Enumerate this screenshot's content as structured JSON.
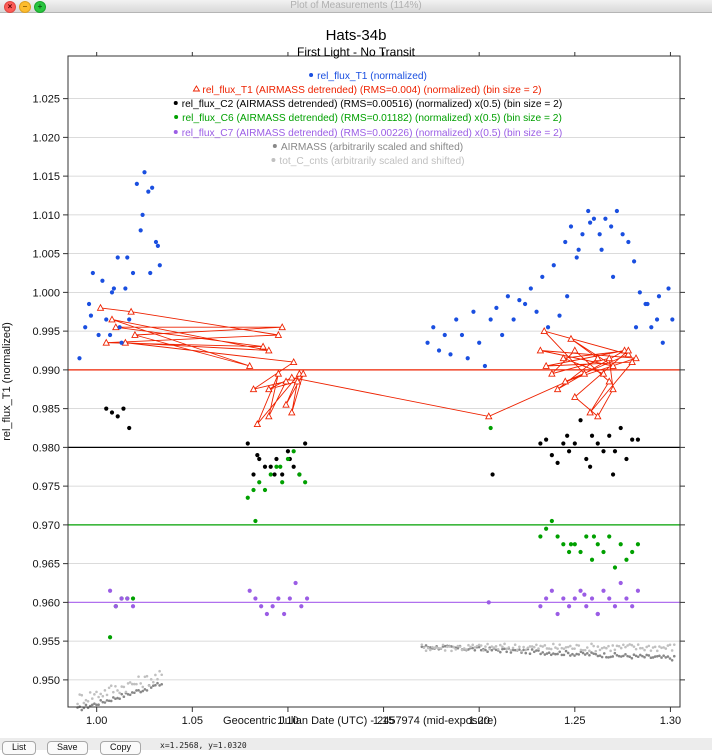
{
  "window": {
    "title": "Plot of Measurements (114%)"
  },
  "buttons": {
    "list": "List",
    "save": "Save",
    "copy": "Copy"
  },
  "coords": "x=1.2568, y=1.0320",
  "chart_data": {
    "type": "scatter",
    "title": "Hats-34b",
    "subtitle": "First Light - No Transit",
    "xlabel": "Geocentric Julian Date (UTC) - 2457974 (mid-exposure)",
    "ylabel": "rel_flux_T1 (normalized)",
    "xlim": [
      0.985,
      1.305
    ],
    "ylim": [
      0.9465,
      1.0305
    ],
    "xticks": [
      1.0,
      1.05,
      1.1,
      1.15,
      1.2,
      1.25,
      1.3
    ],
    "xtick_labels": [
      "1.00",
      "1.05",
      "1.10",
      "1.15",
      "1.20",
      "1.25",
      "1.30"
    ],
    "yticks": [
      0.95,
      0.955,
      0.96,
      0.965,
      0.97,
      0.975,
      0.98,
      0.985,
      0.99,
      0.995,
      1.0,
      1.005,
      1.01,
      1.015,
      1.02,
      1.025
    ],
    "ytick_labels": [
      "0.950",
      "0.955",
      "0.960",
      "0.965",
      "0.970",
      "0.975",
      "0.980",
      "0.985",
      "0.990",
      "0.995",
      "1.000",
      "1.005",
      "1.010",
      "1.015",
      "1.020",
      "1.025"
    ],
    "reference_lines": [
      {
        "y": 0.99,
        "color": "#ee2200"
      },
      {
        "y": 0.98,
        "color": "#000000"
      },
      {
        "y": 0.97,
        "color": "#00a000"
      },
      {
        "y": 0.96,
        "color": "#b070ee"
      }
    ],
    "legend": [
      {
        "label": "rel_flux_T1 (normalized)",
        "color": "#1a4fe0",
        "marker": "dot"
      },
      {
        "label": "rel_flux_T1 (AIRMASS detrended) (RMS=0.004) (normalized) (bin size = 2)",
        "color": "#ee2200",
        "marker": "triangle"
      },
      {
        "label": "rel_flux_C2 (AIRMASS detrended) (RMS=0.00516) (normalized) x(0.5) (bin size = 2)",
        "color": "#000000",
        "marker": "dot"
      },
      {
        "label": "rel_flux_C6 (AIRMASS detrended) (RMS=0.01182) (normalized) x(0.5) (bin size = 2)",
        "color": "#00a000",
        "marker": "dot"
      },
      {
        "label": "rel_flux_C7 (AIRMASS detrended) (RMS=0.00226) (normalized) x(0.5) (bin size = 2)",
        "color": "#9b5de5",
        "marker": "dot"
      },
      {
        "label": "AIRMASS (arbitrarily scaled and shifted)",
        "color": "#888888",
        "marker": "dot"
      },
      {
        "label": "tot_C_cnts (arbitrarily scaled and shifted)",
        "color": "#c0c0c0",
        "marker": "dot"
      }
    ],
    "series": [
      {
        "name": "rel_flux_T1 (normalized)",
        "color": "#1a4fe0",
        "style": "points",
        "x": [
          0.991,
          0.994,
          0.996,
          0.998,
          1.001,
          1.003,
          1.005,
          1.007,
          1.009,
          1.011,
          1.013,
          1.015,
          1.017,
          1.019,
          1.021,
          1.023,
          1.025,
          1.027,
          1.029,
          1.031,
          1.033,
          0.997,
          1.008,
          1.012,
          1.016,
          1.024,
          1.028,
          1.032,
          1.173,
          1.176,
          1.179,
          1.182,
          1.185,
          1.188,
          1.191,
          1.194,
          1.197,
          1.2,
          1.203,
          1.206,
          1.209,
          1.212,
          1.215,
          1.218,
          1.221,
          1.224,
          1.227,
          1.23,
          1.233,
          1.236,
          1.239,
          1.242,
          1.245,
          1.248,
          1.251,
          1.254,
          1.257,
          1.26,
          1.263,
          1.266,
          1.269,
          1.272,
          1.275,
          1.278,
          1.281,
          1.284,
          1.287,
          1.29,
          1.293,
          1.296,
          1.299,
          1.301,
          1.246,
          1.252,
          1.258,
          1.264,
          1.27,
          1.282,
          1.288,
          1.294
        ],
        "y": [
          0.9915,
          0.9955,
          0.9985,
          1.0025,
          0.9945,
          1.0015,
          0.9965,
          0.9945,
          1.0005,
          1.0045,
          0.9935,
          1.0005,
          0.9965,
          1.0025,
          1.014,
          1.008,
          1.0155,
          1.013,
          1.0135,
          1.0065,
          1.0035,
          0.997,
          1.0,
          0.9955,
          1.0045,
          1.01,
          1.0025,
          1.006,
          0.9935,
          0.9955,
          0.9925,
          0.9945,
          0.992,
          0.9965,
          0.9945,
          0.9915,
          0.9975,
          0.9935,
          0.9905,
          0.9965,
          0.998,
          0.9945,
          0.9995,
          0.9965,
          0.999,
          0.9985,
          1.0005,
          0.9975,
          1.002,
          0.9955,
          1.0035,
          0.997,
          1.0065,
          1.0085,
          1.0045,
          1.0075,
          1.0105,
          1.0095,
          1.0075,
          1.0095,
          1.0085,
          1.0105,
          1.0075,
          1.0065,
          1.004,
          1.0,
          0.9985,
          0.9955,
          0.9965,
          0.9935,
          1.0005,
          0.9965,
          0.9995,
          1.0055,
          1.009,
          1.0055,
          1.002,
          0.9955,
          0.9985,
          0.9995
        ]
      },
      {
        "name": "rel_flux_T1 (AIRMASS detrended)",
        "color": "#ee2200",
        "style": "line-triangles",
        "x": [
          1.002,
          1.018,
          1.095,
          1.005,
          1.087,
          1.01,
          1.097,
          1.02,
          1.08,
          1.008,
          1.09,
          1.015,
          1.103,
          1.082,
          1.099,
          1.09,
          1.095,
          1.084,
          1.106,
          1.099,
          1.108,
          1.102,
          1.105,
          1.09,
          1.102,
          1.205,
          1.255,
          1.234,
          1.278,
          1.245,
          1.282,
          1.232,
          1.27,
          1.248,
          1.262,
          1.241,
          1.276,
          1.235,
          1.28,
          1.258,
          1.268,
          1.25,
          1.238,
          1.268,
          1.27,
          1.262,
          1.25,
          1.278,
          1.244,
          1.265
        ],
        "y": [
          0.998,
          0.9975,
          0.9945,
          0.9935,
          0.993,
          0.9955,
          0.9955,
          0.9945,
          0.9905,
          0.9965,
          0.9925,
          0.9935,
          0.991,
          0.9875,
          0.9885,
          0.984,
          0.9895,
          0.983,
          0.9895,
          0.9855,
          0.9895,
          0.9845,
          0.9885,
          0.9875,
          0.989,
          0.984,
          0.9895,
          0.995,
          0.992,
          0.9885,
          0.9915,
          0.9925,
          0.9905,
          0.994,
          0.9915,
          0.9875,
          0.9925,
          0.9905,
          0.991,
          0.9845,
          0.9885,
          0.9925,
          0.9895,
          0.9915,
          0.9875,
          0.984,
          0.9865,
          0.9925,
          0.9915,
          0.9895
        ]
      },
      {
        "name": "rel_flux_C2 (AIRMASS detrended)",
        "color": "#000000",
        "style": "points",
        "x": [
          1.005,
          1.008,
          1.011,
          1.014,
          1.017,
          1.079,
          1.082,
          1.085,
          1.088,
          1.091,
          1.094,
          1.097,
          1.1,
          1.103,
          1.106,
          1.109,
          1.084,
          1.093,
          1.101,
          1.207,
          1.232,
          1.235,
          1.238,
          1.241,
          1.244,
          1.247,
          1.25,
          1.253,
          1.256,
          1.259,
          1.262,
          1.265,
          1.268,
          1.271,
          1.274,
          1.277,
          1.28,
          1.283,
          1.246,
          1.258,
          1.27
        ],
        "y": [
          0.985,
          0.9845,
          0.984,
          0.985,
          0.9825,
          0.9805,
          0.9765,
          0.9785,
          0.9775,
          0.9775,
          0.9785,
          0.9765,
          0.9795,
          0.9775,
          0.9765,
          0.9805,
          0.979,
          0.9765,
          0.9785,
          0.9765,
          0.9805,
          0.981,
          0.979,
          0.978,
          0.9805,
          0.9795,
          0.9805,
          0.9835,
          0.9785,
          0.9815,
          0.9805,
          0.9795,
          0.9815,
          0.9795,
          0.9825,
          0.9785,
          0.981,
          0.981,
          0.9815,
          0.9775,
          0.9765
        ]
      },
      {
        "name": "rel_flux_C6 (AIRMASS detrended)",
        "color": "#00a000",
        "style": "points",
        "x": [
          1.007,
          1.01,
          1.013,
          1.016,
          1.019,
          1.079,
          1.082,
          1.085,
          1.088,
          1.091,
          1.094,
          1.097,
          1.1,
          1.103,
          1.106,
          1.109,
          1.083,
          1.096,
          1.206,
          1.232,
          1.235,
          1.238,
          1.241,
          1.244,
          1.247,
          1.25,
          1.253,
          1.256,
          1.259,
          1.262,
          1.265,
          1.268,
          1.271,
          1.274,
          1.277,
          1.28,
          1.283,
          1.248,
          1.26
        ],
        "y": [
          0.9555,
          0.9595,
          0.9605,
          0.9605,
          0.9605,
          0.9735,
          0.9745,
          0.9755,
          0.9745,
          0.9765,
          0.9775,
          0.9755,
          0.9785,
          0.9795,
          0.9765,
          0.9755,
          0.9705,
          0.9775,
          0.9825,
          0.9685,
          0.9695,
          0.9705,
          0.9685,
          0.9675,
          0.9665,
          0.9675,
          0.9665,
          0.9685,
          0.9655,
          0.9675,
          0.9665,
          0.9685,
          0.9645,
          0.9675,
          0.9655,
          0.9665,
          0.9675,
          0.9675,
          0.9685
        ]
      },
      {
        "name": "rel_flux_C7 (AIRMASS detrended)",
        "color": "#9b5de5",
        "style": "points",
        "x": [
          1.007,
          1.01,
          1.013,
          1.016,
          1.019,
          1.08,
          1.083,
          1.086,
          1.089,
          1.092,
          1.095,
          1.098,
          1.101,
          1.104,
          1.107,
          1.11,
          1.205,
          1.232,
          1.235,
          1.238,
          1.241,
          1.244,
          1.247,
          1.25,
          1.253,
          1.256,
          1.259,
          1.262,
          1.265,
          1.268,
          1.271,
          1.274,
          1.277,
          1.28,
          1.283,
          1.255,
          1.262
        ],
        "y": [
          0.9615,
          0.9595,
          0.9605,
          0.9605,
          0.9595,
          0.9615,
          0.9605,
          0.9595,
          0.9585,
          0.9595,
          0.9605,
          0.9585,
          0.9605,
          0.9625,
          0.9595,
          0.9605,
          0.96,
          0.9595,
          0.9605,
          0.9615,
          0.9585,
          0.9605,
          0.9595,
          0.9605,
          0.9615,
          0.9595,
          0.9605,
          0.9585,
          0.9615,
          0.9605,
          0.9595,
          0.9625,
          0.9605,
          0.9595,
          0.9615,
          0.961,
          0.9585
        ]
      },
      {
        "name": "AIRMASS",
        "color": "#888888",
        "style": "dense-points",
        "segments": [
          {
            "x": [
              0.99,
              1.034
            ],
            "y": [
              0.9462,
              0.9495
            ],
            "noise": 0.0003
          },
          {
            "x": [
              1.17,
              1.302
            ],
            "y": [
              0.9543,
              0.9528
            ],
            "noise": 0.0003
          }
        ]
      },
      {
        "name": "tot_C_cnts",
        "color": "#c0c0c0",
        "style": "dense-points",
        "segments": [
          {
            "x": [
              0.99,
              1.034
            ],
            "y": [
              0.9475,
              0.9505
            ],
            "noise": 0.0008
          },
          {
            "x": [
              1.17,
              1.302
            ],
            "y": [
              0.9542,
              0.9542
            ],
            "noise": 0.0005
          }
        ]
      }
    ]
  }
}
